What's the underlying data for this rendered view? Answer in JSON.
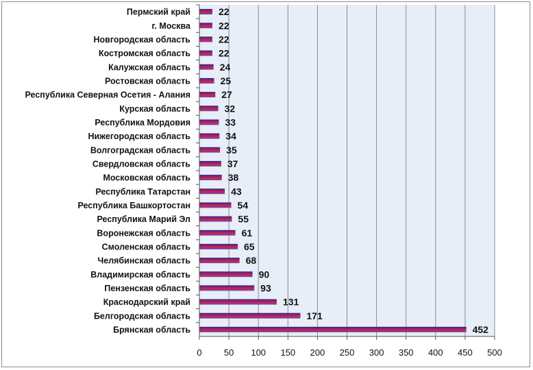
{
  "chart_data": {
    "type": "bar",
    "orientation": "horizontal",
    "categories": [
      "Пермский край",
      "г. Москва",
      "Новгородская область",
      "Костромская область",
      "Калужская область",
      "Ростовская область",
      "Республика Северная Осетия - Алания",
      "Курская область",
      "Республика Мордовия",
      "Нижегородская область",
      "Волгоградская область",
      "Свердловская область",
      "Московская область",
      "Республика Татарстан",
      "Республика Башкортостан",
      "Республика Марий Эл",
      "Воронежская область",
      "Смоленская область",
      "Челябинская область",
      "Владимирская область",
      "Пензенская область",
      "Краснодарский край",
      "Белгородская область",
      "Брянская область"
    ],
    "values": [
      22,
      22,
      22,
      22,
      24,
      25,
      27,
      32,
      33,
      34,
      35,
      37,
      38,
      43,
      54,
      55,
      61,
      65,
      68,
      90,
      93,
      131,
      171,
      452
    ],
    "xlim": [
      0,
      500
    ],
    "x_ticks": [
      "0",
      "50",
      "100",
      "150",
      "200",
      "250",
      "300",
      "350",
      "400",
      "450",
      "500"
    ],
    "grid": "vertical",
    "data_labels": true,
    "colors": {
      "bar_top": "#2a2a9a",
      "bar_mid": "#c81e4a",
      "bar_bottom": "#7a4aa8",
      "plot_bg": "#e8eef8",
      "gridline": "#8a8a8a"
    }
  }
}
